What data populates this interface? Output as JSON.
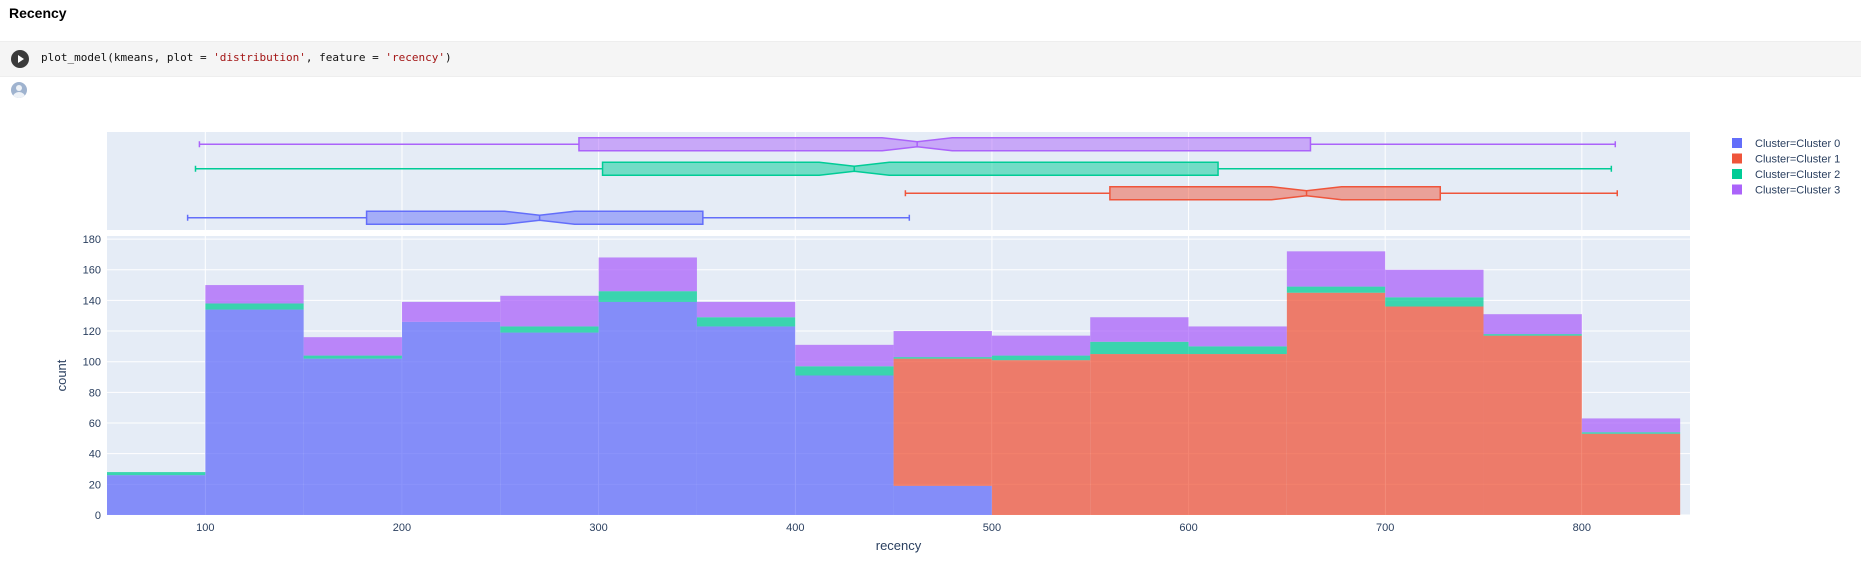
{
  "cell": {
    "heading": "Recency",
    "code_prefix": "plot_model(kmeans, plot = ",
    "code_arg1": "'distribution'",
    "code_mid": ", feature = ",
    "code_arg2": "'recency'",
    "code_suffix": ")"
  },
  "chart_data": {
    "type": "bar",
    "title": "",
    "xlabel": "recency",
    "ylabel": "count",
    "xlim": [
      50,
      855
    ],
    "ylim": [
      0,
      182
    ],
    "grid": true,
    "barmode": "stack",
    "legend_position": "top-right",
    "x_ticks": [
      100,
      200,
      300,
      400,
      500,
      600,
      700,
      800
    ],
    "y_ticks": [
      0,
      20,
      40,
      60,
      80,
      100,
      120,
      140,
      160,
      180
    ],
    "bin_starts": [
      50,
      100,
      150,
      200,
      250,
      300,
      350,
      400,
      450,
      500,
      550,
      600,
      650,
      700,
      750,
      800
    ],
    "bin_width": 50,
    "series": [
      {
        "name": "Cluster=Cluster 0",
        "color": "#636efa",
        "values": [
          26,
          134,
          102,
          126,
          119,
          139,
          123,
          91,
          19,
          0,
          0,
          0,
          0,
          0,
          0,
          0
        ]
      },
      {
        "name": "Cluster=Cluster 1",
        "color": "#ef553b",
        "values": [
          0,
          0,
          0,
          0,
          0,
          0,
          0,
          0,
          83,
          101,
          105,
          105,
          145,
          136,
          117,
          53
        ]
      },
      {
        "name": "Cluster=Cluster 2",
        "color": "#00cc96",
        "values": [
          2,
          4,
          2,
          0,
          4,
          7,
          6,
          6,
          1,
          3,
          8,
          5,
          4,
          6,
          1,
          1
        ]
      },
      {
        "name": "Cluster=Cluster 3",
        "color": "#ab63fa",
        "values": [
          0,
          12,
          12,
          13,
          20,
          22,
          10,
          14,
          17,
          13,
          16,
          13,
          23,
          18,
          13,
          9
        ]
      }
    ],
    "box_plots": [
      {
        "name": "Cluster=Cluster 3",
        "color": "#ab63fa",
        "whisker_low": 97,
        "q1": 290,
        "median": 462,
        "q3": 662,
        "whisker_high": 817
      },
      {
        "name": "Cluster=Cluster 2",
        "color": "#00cc96",
        "whisker_low": 95,
        "q1": 302,
        "median": 430,
        "q3": 615,
        "whisker_high": 815
      },
      {
        "name": "Cluster=Cluster 1",
        "color": "#ef553b",
        "whisker_low": 456,
        "q1": 560,
        "median": 660,
        "q3": 728,
        "whisker_high": 818
      },
      {
        "name": "Cluster=Cluster 0",
        "color": "#636efa",
        "whisker_low": 91,
        "q1": 182,
        "median": 270,
        "q3": 353,
        "whisker_high": 458
      }
    ]
  }
}
